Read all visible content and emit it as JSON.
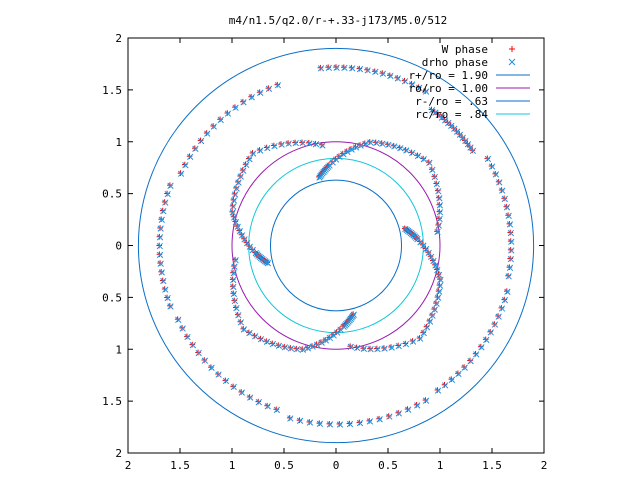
{
  "chart_data": {
    "type": "scatter",
    "title": "m4/n1.5/q2.0/r-+.33-j173/M5.0/512",
    "xlim": [
      -2,
      2
    ],
    "ylim": [
      -2,
      2
    ],
    "x_ticks": [
      {
        "value": -2,
        "label": "2"
      },
      {
        "value": -1.5,
        "label": "1.5"
      },
      {
        "value": -1,
        "label": "1"
      },
      {
        "value": -0.5,
        "label": "0.5"
      },
      {
        "value": 0,
        "label": "0"
      },
      {
        "value": 0.5,
        "label": "0.5"
      },
      {
        "value": 1,
        "label": "1"
      },
      {
        "value": 1.5,
        "label": "1.5"
      },
      {
        "value": 2,
        "label": "2"
      }
    ],
    "y_ticks": [
      {
        "value": 2,
        "label": "2"
      },
      {
        "value": 1.5,
        "label": "1.5"
      },
      {
        "value": 1,
        "label": "1"
      },
      {
        "value": 0.5,
        "label": "0.5"
      },
      {
        "value": 0,
        "label": "0"
      },
      {
        "value": -0.5,
        "label": "0.5"
      },
      {
        "value": -1,
        "label": "1"
      },
      {
        "value": -1.5,
        "label": "1.5"
      },
      {
        "value": -2,
        "label": "2"
      }
    ],
    "legend_position": "top-right",
    "grid": false,
    "circles": [
      {
        "label": "r+/ro = 1.90",
        "r": 1.9,
        "color": "#0a6fc8"
      },
      {
        "label": "ro/ro = 1.00",
        "r": 1.0,
        "color": "#9a1ab0"
      },
      {
        "label": "r-/ro = .63",
        "r": 0.63,
        "color": "#0a6fc8"
      },
      {
        "label": "rc/ro = .84",
        "r": 0.84,
        "color": "#10c8d8"
      }
    ],
    "series": [
      {
        "name": "W phase",
        "marker": "+",
        "color": "#ff0000",
        "spirals": [
          {
            "angles_deg": [
              98,
              132,
              162,
              185,
              195
            ],
            "radii": [
              0.98,
              1.2,
              1.05,
              0.78,
              0.67
            ]
          },
          {
            "angles_deg": [
              8,
              42,
              72,
              95,
              105
            ],
            "radii": [
              0.98,
              1.2,
              1.05,
              0.78,
              0.67
            ]
          },
          {
            "angles_deg": [
              -82,
              -48,
              -18,
              5,
              15
            ],
            "radii": [
              0.98,
              1.2,
              1.05,
              0.78,
              0.67
            ]
          },
          {
            "angles_deg": [
              188,
              222,
              252,
              275,
              285
            ],
            "radii": [
              0.98,
              1.2,
              1.05,
              0.78,
              0.67
            ]
          }
        ],
        "outer_arcs": [
          {
            "angles_deg": [
              60,
              95
            ],
            "radius": 1.72
          },
          {
            "angles_deg": [
              110,
              155
            ],
            "radius": 1.65
          },
          {
            "angles_deg": [
              160,
              200
            ],
            "radius": 1.7
          },
          {
            "angles_deg": [
              205,
              250
            ],
            "radius": 1.68
          },
          {
            "angles_deg": [
              255,
              300
            ],
            "radius": 1.72
          },
          {
            "angles_deg": [
              305,
              345
            ],
            "radius": 1.7
          },
          {
            "angles_deg": [
              -10,
              30
            ],
            "radius": 1.68
          },
          {
            "angles_deg": [
              35,
              55
            ],
            "radius": 1.6
          }
        ]
      },
      {
        "name": "drho phase",
        "marker": "x",
        "color": "#1e90e0",
        "spirals": [
          {
            "angles_deg": [
              98,
              132,
              162,
              185,
              195
            ],
            "radii": [
              0.98,
              1.2,
              1.05,
              0.78,
              0.67
            ]
          },
          {
            "angles_deg": [
              8,
              42,
              72,
              95,
              105
            ],
            "radii": [
              0.98,
              1.2,
              1.05,
              0.78,
              0.67
            ]
          },
          {
            "angles_deg": [
              -82,
              -48,
              -18,
              5,
              15
            ],
            "radii": [
              0.98,
              1.2,
              1.05,
              0.78,
              0.67
            ]
          },
          {
            "angles_deg": [
              188,
              222,
              252,
              275,
              285
            ],
            "radii": [
              0.98,
              1.2,
              1.05,
              0.78,
              0.67
            ]
          }
        ],
        "outer_arcs": [
          {
            "angles_deg": [
              60,
              95
            ],
            "radius": 1.72
          },
          {
            "angles_deg": [
              110,
              155
            ],
            "radius": 1.65
          },
          {
            "angles_deg": [
              160,
              200
            ],
            "radius": 1.7
          },
          {
            "angles_deg": [
              205,
              250
            ],
            "radius": 1.68
          },
          {
            "angles_deg": [
              255,
              300
            ],
            "radius": 1.72
          },
          {
            "angles_deg": [
              305,
              345
            ],
            "radius": 1.7
          },
          {
            "angles_deg": [
              -10,
              30
            ],
            "radius": 1.68
          },
          {
            "angles_deg": [
              35,
              55
            ],
            "radius": 1.6
          }
        ]
      }
    ]
  }
}
